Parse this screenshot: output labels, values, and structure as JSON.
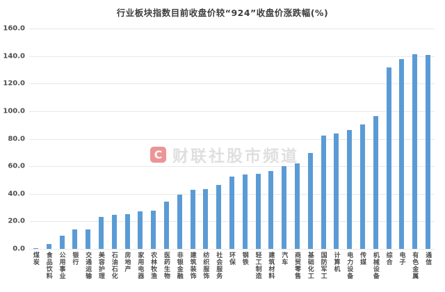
{
  "title": "行业板块指数目前收盘价较“924”收盘价涨跌幅(%)",
  "watermark": {
    "logo": "C",
    "text": "财联社股市频道"
  },
  "chart_data": {
    "type": "bar",
    "title": "行业板块指数目前收盘价较“924”收盘价涨跌幅(%)",
    "categories": [
      "煤炭",
      "食品饮料",
      "公用事业",
      "银行",
      "交通运输",
      "美容护理",
      "石油石化",
      "房地产",
      "家用电器",
      "农林牧渔",
      "医药生物",
      "非银金融",
      "建筑装饰",
      "纺织服饰",
      "社会服务",
      "环保",
      "钢铁",
      "轻工制造",
      "建筑材料",
      "汽车",
      "商贸零售",
      "基础化工",
      "国防军工",
      "计算机",
      "电力设备",
      "传媒",
      "机械设备",
      "综合",
      "电子",
      "有色金属",
      "通信"
    ],
    "values": [
      0.4,
      3.5,
      9.4,
      14.0,
      14.3,
      23.1,
      24.6,
      25.1,
      27.4,
      27.8,
      34.5,
      39.4,
      42.8,
      43.6,
      46.6,
      52.3,
      54.2,
      54.5,
      56.6,
      60.0,
      62.1,
      69.5,
      82.5,
      84.0,
      86.5,
      90.3,
      96.3,
      131.5,
      138.0,
      141.3,
      140.8
    ],
    "xlabel": "",
    "ylabel": "",
    "ylim": [
      0,
      160
    ],
    "yticks": [
      0,
      20,
      40,
      60,
      80,
      100,
      120,
      140,
      160
    ],
    "ytick_labels": [
      "0.0",
      "20.0",
      "40.0",
      "60.0",
      "80.0",
      "100.0",
      "120.0",
      "140.0",
      "160.0"
    ],
    "grid": true,
    "legend": false,
    "bar_color": "#5b9bd5",
    "gridline_color": "#e8e8e8",
    "label_color": "#4d4d4d",
    "background_color": "#ffffff"
  }
}
